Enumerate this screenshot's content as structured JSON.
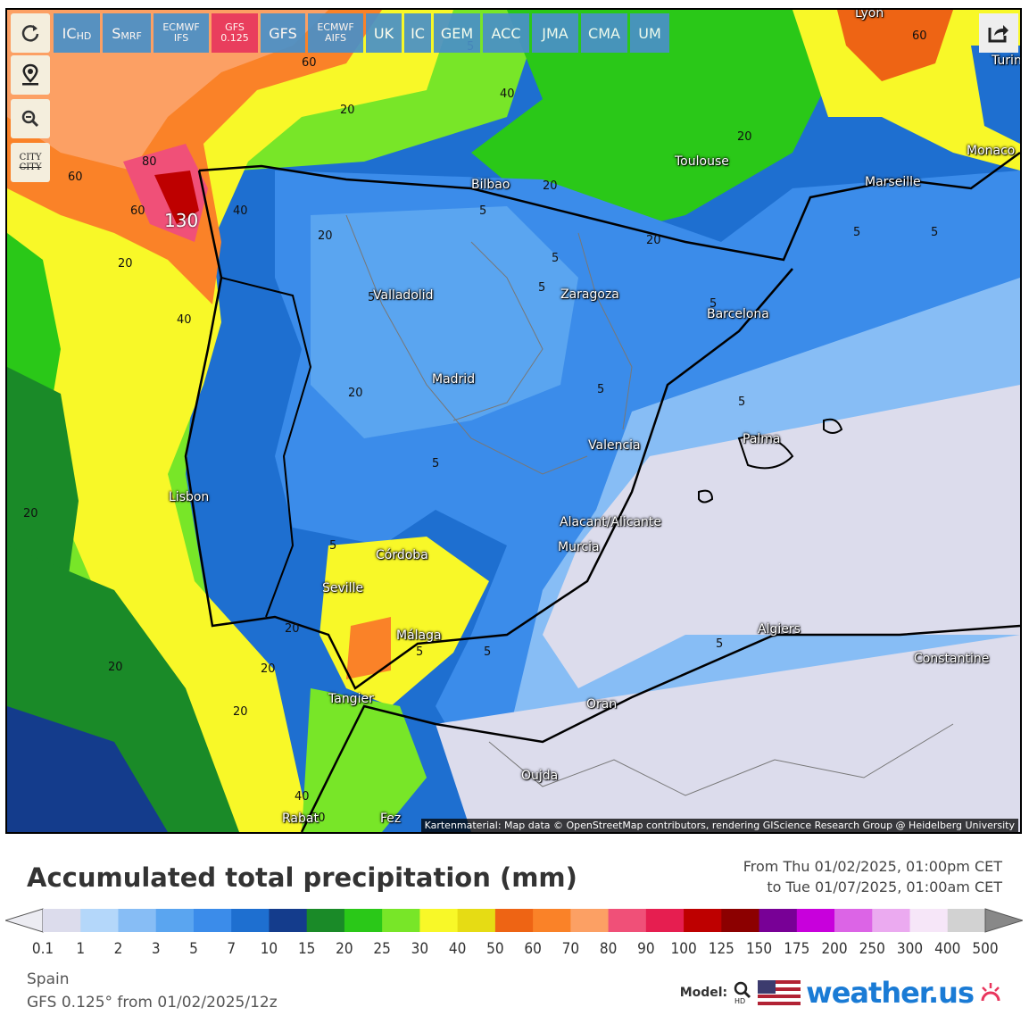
{
  "models": [
    {
      "label": "IC",
      "sub": "HD",
      "active": false
    },
    {
      "label": "S",
      "sub": "MRF",
      "active": false
    },
    {
      "label": "ECMWF IFS",
      "active": false,
      "small": true
    },
    {
      "label": "GFS 0.125",
      "active": true,
      "small": true
    },
    {
      "label": "GFS",
      "active": false
    },
    {
      "label": "ECMWF AIFS",
      "active": false,
      "small": true
    },
    {
      "label": "UK",
      "active": false
    },
    {
      "label": "IC",
      "active": false
    },
    {
      "label": "GEM",
      "active": false
    },
    {
      "label": "ACC",
      "active": false
    },
    {
      "label": "JMA",
      "active": false
    },
    {
      "label": "CMA",
      "active": false
    },
    {
      "label": "UM",
      "active": false
    }
  ],
  "tools": {
    "refresh_icon": "refresh-icon",
    "location_icon": "location-pin-icon",
    "zoom_icon": "zoom-out-icon",
    "city_toggle": "CITY",
    "city_toggle_struck": "CITY",
    "share_icon": "share-icon"
  },
  "cities": [
    {
      "name": "Lyon"
    },
    {
      "name": "Turin"
    },
    {
      "name": "Toulouse"
    },
    {
      "name": "Monaco"
    },
    {
      "name": "Marseille"
    },
    {
      "name": "Bilbao"
    },
    {
      "name": "Valladolid"
    },
    {
      "name": "Zaragoza"
    },
    {
      "name": "Barcelona"
    },
    {
      "name": "Madrid"
    },
    {
      "name": "Valencia"
    },
    {
      "name": "Palma"
    },
    {
      "name": "Lisbon"
    },
    {
      "name": "Alacant/Alicante"
    },
    {
      "name": "Murcia"
    },
    {
      "name": "Córdoba"
    },
    {
      "name": "Seville"
    },
    {
      "name": "Málaga"
    },
    {
      "name": "Algiers"
    },
    {
      "name": "Constantine"
    },
    {
      "name": "Tangier"
    },
    {
      "name": "Oran"
    },
    {
      "name": "Oujda"
    },
    {
      "name": "Rabat"
    },
    {
      "name": "Fez"
    }
  ],
  "contour_labels": [
    "60",
    "40",
    "20",
    "20",
    "80",
    "60",
    "60",
    "40",
    "130",
    "20",
    "40",
    "20",
    "20",
    "5",
    "5",
    "5",
    "5",
    "5",
    "5",
    "5",
    "5",
    "5",
    "5",
    "5",
    "20",
    "20",
    "20",
    "20",
    "20",
    "20",
    "40",
    "5",
    "5",
    "5",
    "20",
    "60",
    "20",
    "5"
  ],
  "attribution": "Kartenmaterial: Map data © OpenStreetMap contributors, rendering GIScience Research Group @ Heidelberg University",
  "title": "Accumulated total precipitation (mm)",
  "date_from": "From Thu 01/02/2025, 01:00pm CET",
  "date_to": "to Tue 01/07/2025, 01:00am CET",
  "legend": {
    "ticks": [
      "0.1",
      "1",
      "2",
      "3",
      "5",
      "7",
      "10",
      "15",
      "20",
      "25",
      "30",
      "40",
      "50",
      "60",
      "70",
      "80",
      "90",
      "100",
      "125",
      "150",
      "175",
      "200",
      "250",
      "300",
      "400",
      "500"
    ],
    "colors": [
      "#dcdcec",
      "#b4d7fa",
      "#87bdf5",
      "#5aa5f0",
      "#3b8cea",
      "#1e6fd0",
      "#143c8c",
      "#1a8a28",
      "#2ac818",
      "#78e628",
      "#f8f828",
      "#e6dc14",
      "#ee6414",
      "#fa8228",
      "#fca064",
      "#f05078",
      "#e61e50",
      "#be0000",
      "#8c0000",
      "#780096",
      "#c800dc",
      "#dc64e6",
      "#ebaaf0",
      "#f6e6f8",
      "#d2d2d2"
    ]
  },
  "footer_region": "Spain",
  "footer_model": "GFS 0.125° from 01/02/2025/12z",
  "brand_model_label": "Model:",
  "brand_name": "weather.us"
}
